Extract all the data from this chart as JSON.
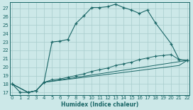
{
  "xlabel": "Humidex (Indice chaleur)",
  "bg_color": "#cce8e8",
  "grid_color": "#a8cccc",
  "line_color": "#1a6666",
  "xlim": [
    -0.3,
    22.3
  ],
  "ylim": [
    16.7,
    27.7
  ],
  "ytick_vals": [
    17,
    18,
    19,
    20,
    21,
    22,
    23,
    24,
    25,
    26,
    27
  ],
  "xtick_vals": [
    0,
    1,
    2,
    3,
    4,
    5,
    6,
    7,
    8,
    9,
    10,
    11,
    12,
    13,
    14,
    15,
    16,
    17,
    18,
    19,
    20,
    21,
    22
  ],
  "s1_x": [
    0,
    1,
    2,
    3,
    4,
    5,
    6,
    7,
    8,
    9,
    10,
    11,
    12,
    13,
    14,
    15,
    16,
    17,
    18,
    20,
    21,
    22
  ],
  "s1_y": [
    18,
    17,
    17,
    17.2,
    18.2,
    23.0,
    23.1,
    23.3,
    25.2,
    26.1,
    27.1,
    27.1,
    27.2,
    27.5,
    27.1,
    26.8,
    26.4,
    26.8,
    25.3,
    22.8,
    20.9,
    20.8
  ],
  "s2_x": [
    0,
    2,
    3,
    4,
    5,
    6,
    7,
    8,
    9,
    10,
    11,
    12,
    13,
    14,
    15,
    16,
    17,
    18,
    19,
    20,
    21,
    22
  ],
  "s2_y": [
    18,
    17,
    17.2,
    18.2,
    18.5,
    18.6,
    18.8,
    19.0,
    19.2,
    19.5,
    19.7,
    19.9,
    20.2,
    20.4,
    20.6,
    20.9,
    21.1,
    21.3,
    21.4,
    21.5,
    20.9,
    20.8
  ],
  "s3_x": [
    0,
    2,
    3,
    4,
    22
  ],
  "s3_y": [
    18,
    17,
    17.2,
    18.2,
    20.8
  ],
  "s4_x": [
    0,
    2,
    3,
    4,
    21,
    22
  ],
  "s4_y": [
    18,
    17,
    17.2,
    18.2,
    20.2,
    20.8
  ]
}
